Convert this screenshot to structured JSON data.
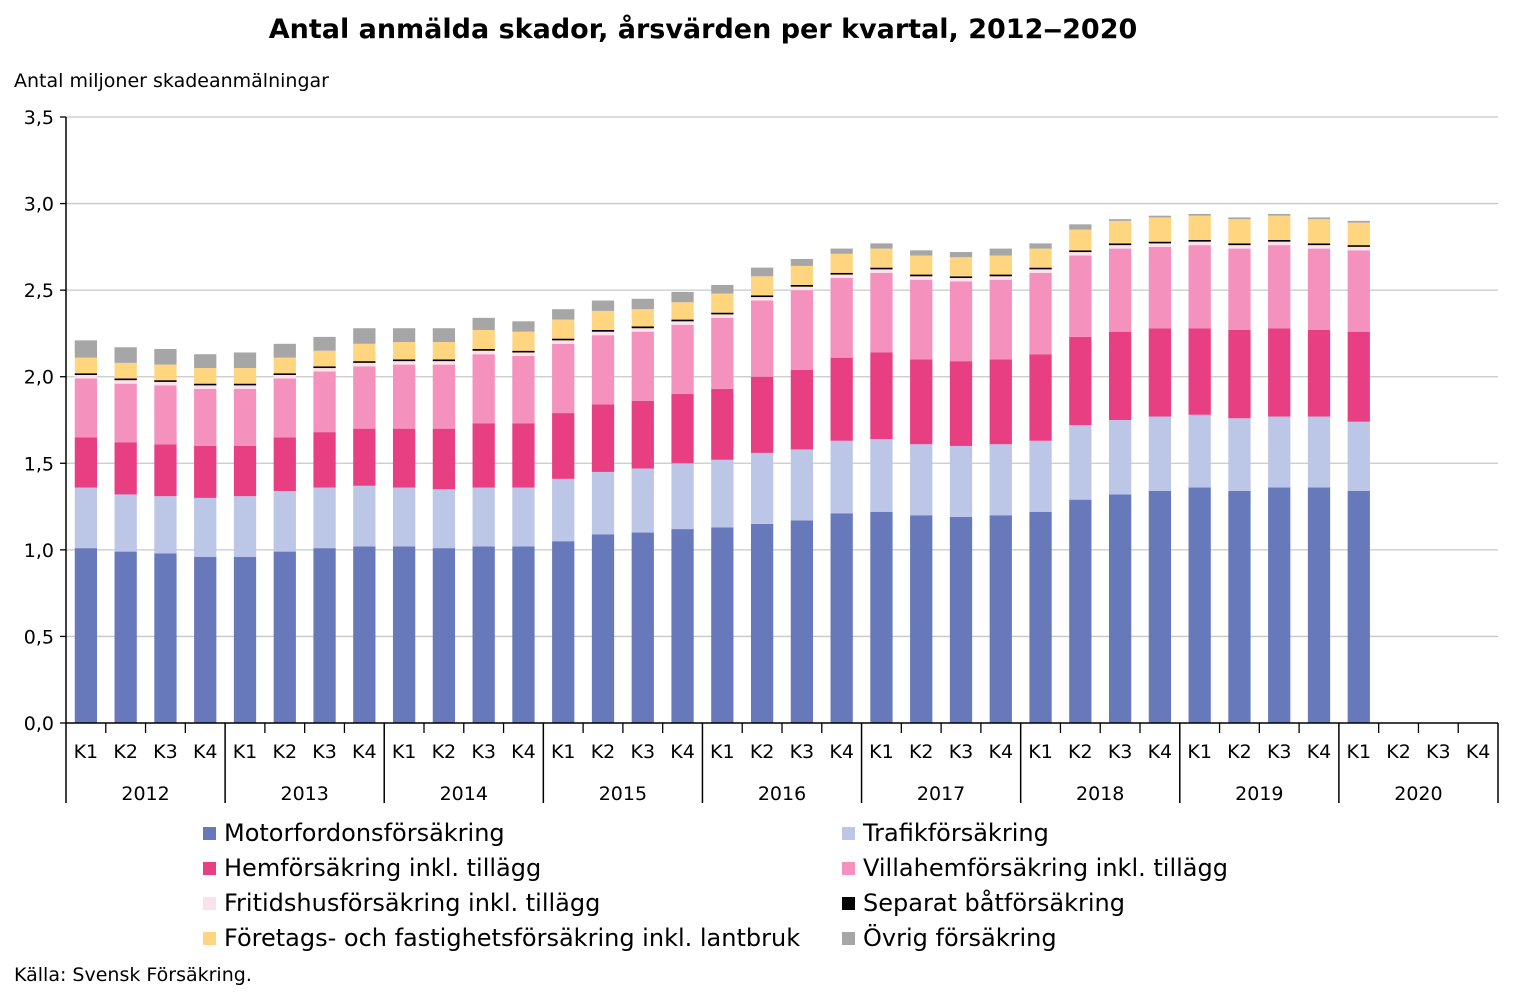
{
  "chart_data": {
    "type": "bar",
    "stacked": true,
    "title": "Antal anmälda skador, årsvärden per kvartal, 2012‒2020",
    "ylabel": "Antal miljoner skadeanmälningar",
    "ylim": [
      0,
      3.5
    ],
    "yticks": [
      "0,0",
      "0,5",
      "1,0",
      "1,5",
      "2,0",
      "2,5",
      "3,0",
      "3,5"
    ],
    "grid": true,
    "legend_position": "bottom",
    "quarters": [
      "K1",
      "K2",
      "K3",
      "K4"
    ],
    "years": [
      "2012",
      "2013",
      "2014",
      "2015",
      "2016",
      "2017",
      "2018",
      "2019",
      "2020"
    ],
    "categories": [
      "2012 K1",
      "2012 K2",
      "2012 K3",
      "2012 K4",
      "2013 K1",
      "2013 K2",
      "2013 K3",
      "2013 K4",
      "2014 K1",
      "2014 K2",
      "2014 K3",
      "2014 K4",
      "2015 K1",
      "2015 K2",
      "2015 K3",
      "2015 K4",
      "2016 K1",
      "2016 K2",
      "2016 K3",
      "2016 K4",
      "2017 K1",
      "2017 K2",
      "2017 K3",
      "2017 K4",
      "2018 K1",
      "2018 K2",
      "2018 K3",
      "2018 K4",
      "2019 K1",
      "2019 K2",
      "2019 K3",
      "2019 K4",
      "2020 K1",
      "2020 K2",
      "2020 K3",
      "2020 K4"
    ],
    "series": [
      {
        "name": "Motorfordonsförsäkring",
        "color": "#6779BB",
        "values": [
          1.01,
          0.99,
          0.98,
          0.96,
          0.96,
          0.99,
          1.01,
          1.02,
          1.02,
          1.01,
          1.02,
          1.02,
          1.05,
          1.09,
          1.1,
          1.12,
          1.13,
          1.15,
          1.17,
          1.21,
          1.22,
          1.2,
          1.19,
          1.2,
          1.22,
          1.29,
          1.32,
          1.34,
          1.36,
          1.34,
          1.36,
          1.36,
          1.34,
          null,
          null,
          null
        ]
      },
      {
        "name": "Trafikförsäkring",
        "color": "#BCC6E6",
        "values": [
          0.35,
          0.33,
          0.33,
          0.34,
          0.35,
          0.35,
          0.35,
          0.35,
          0.34,
          0.34,
          0.34,
          0.34,
          0.36,
          0.36,
          0.37,
          0.38,
          0.39,
          0.41,
          0.41,
          0.42,
          0.42,
          0.41,
          0.41,
          0.41,
          0.41,
          0.43,
          0.43,
          0.43,
          0.42,
          0.42,
          0.41,
          0.41,
          0.4,
          null,
          null,
          null
        ]
      },
      {
        "name": "Hemförsäkring inkl. tillägg",
        "color": "#E83F83",
        "values": [
          0.29,
          0.3,
          0.3,
          0.3,
          0.29,
          0.31,
          0.32,
          0.33,
          0.34,
          0.35,
          0.37,
          0.37,
          0.38,
          0.39,
          0.39,
          0.4,
          0.41,
          0.44,
          0.46,
          0.48,
          0.5,
          0.49,
          0.49,
          0.49,
          0.5,
          0.51,
          0.51,
          0.51,
          0.5,
          0.51,
          0.51,
          0.5,
          0.52,
          null,
          null,
          null
        ]
      },
      {
        "name": "Villahemförsäkring inkl. tillägg",
        "color": "#F491BD",
        "values": [
          0.34,
          0.34,
          0.34,
          0.33,
          0.33,
          0.34,
          0.35,
          0.36,
          0.37,
          0.37,
          0.4,
          0.39,
          0.4,
          0.4,
          0.4,
          0.4,
          0.41,
          0.44,
          0.46,
          0.46,
          0.46,
          0.46,
          0.46,
          0.46,
          0.47,
          0.47,
          0.48,
          0.47,
          0.48,
          0.47,
          0.48,
          0.47,
          0.47,
          null,
          null,
          null
        ]
      },
      {
        "name": "Fritidshusförsäkring inkl. tillägg",
        "color": "#FBE1EC",
        "values": [
          0.02,
          0.02,
          0.02,
          0.02,
          0.02,
          0.02,
          0.02,
          0.02,
          0.02,
          0.02,
          0.02,
          0.02,
          0.02,
          0.02,
          0.02,
          0.02,
          0.02,
          0.02,
          0.02,
          0.02,
          0.02,
          0.02,
          0.02,
          0.02,
          0.02,
          0.02,
          0.02,
          0.02,
          0.02,
          0.02,
          0.02,
          0.02,
          0.02,
          null,
          null,
          null
        ]
      },
      {
        "name": "Separat båtförsäkring",
        "color": "#000000",
        "values": [
          0.01,
          0.01,
          0.01,
          0.01,
          0.01,
          0.01,
          0.01,
          0.01,
          0.01,
          0.01,
          0.01,
          0.01,
          0.01,
          0.01,
          0.01,
          0.01,
          0.01,
          0.01,
          0.01,
          0.01,
          0.01,
          0.01,
          0.01,
          0.01,
          0.01,
          0.01,
          0.01,
          0.01,
          0.01,
          0.01,
          0.01,
          0.01,
          0.01,
          null,
          null,
          null
        ]
      },
      {
        "name": "Företags- och fastighetsförsäkring inkl. lantbruk",
        "color": "#FFD580",
        "values": [
          0.09,
          0.09,
          0.09,
          0.09,
          0.09,
          0.09,
          0.09,
          0.1,
          0.1,
          0.1,
          0.11,
          0.11,
          0.11,
          0.11,
          0.1,
          0.1,
          0.11,
          0.11,
          0.11,
          0.11,
          0.11,
          0.11,
          0.11,
          0.11,
          0.11,
          0.12,
          0.13,
          0.14,
          0.14,
          0.14,
          0.14,
          0.14,
          0.13,
          null,
          null,
          null
        ]
      },
      {
        "name": "Övrig försäkring",
        "color": "#A6A6A6",
        "values": [
          0.1,
          0.09,
          0.09,
          0.08,
          0.09,
          0.08,
          0.08,
          0.09,
          0.08,
          0.08,
          0.07,
          0.06,
          0.06,
          0.06,
          0.06,
          0.06,
          0.05,
          0.05,
          0.04,
          0.03,
          0.03,
          0.03,
          0.03,
          0.04,
          0.03,
          0.03,
          0.01,
          0.01,
          0.01,
          0.01,
          0.01,
          0.01,
          0.01,
          null,
          null,
          null
        ]
      }
    ]
  },
  "source": "Källa: Svensk Försäkring."
}
